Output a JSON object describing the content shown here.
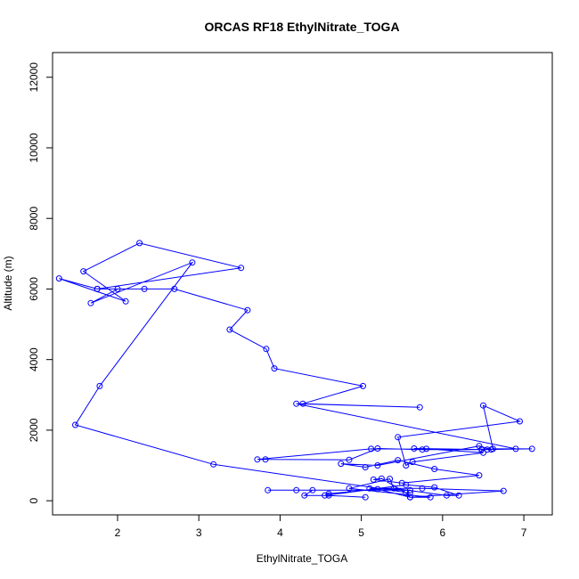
{
  "chart_data": {
    "type": "line",
    "title": "ORCAS RF18 EthylNitrate_TOGA",
    "xlabel": "EthylNitrate_TOGA",
    "ylabel": "Altitude (m)",
    "xlim": [
      1.2,
      7.35
    ],
    "ylim": [
      -400,
      12700
    ],
    "xticks": [
      2,
      3,
      4,
      5,
      6,
      7
    ],
    "yticks": [
      0,
      2000,
      4000,
      6000,
      8000,
      10000,
      12000
    ],
    "grid": false,
    "line_color": "#0000ff",
    "marker": "open-circle",
    "series": [
      {
        "x": [
          5.05,
          4.6,
          4.3,
          4.4,
          3.85,
          4.2,
          5.6,
          5.1,
          5.75,
          6.75,
          5.6,
          5.2,
          4.6,
          4.55,
          5.55,
          5.9,
          6.2,
          6.05,
          5.4,
          5.35,
          4.85,
          5.85,
          5.6,
          5.55,
          5.25,
          5.15,
          5.5,
          6.45,
          5.9,
          5.45,
          5.05,
          4.75,
          5.2,
          6.45,
          6.6,
          5.75,
          5.2,
          4.85,
          3.82,
          3.72,
          5.12,
          6.55,
          5.65,
          5.8,
          6.5,
          5.63,
          5.55,
          5.45,
          6.95,
          6.5,
          6.62,
          7.1,
          6.48,
          6.48,
          6.9,
          4.2,
          5.72,
          4.28,
          5.02,
          3.93,
          3.83,
          3.38,
          3.6,
          2.7,
          1.75,
          1.28,
          2.1,
          1.58,
          2.27,
          3.52,
          1.75,
          2.33,
          2.0,
          1.67,
          2.92,
          1.78,
          1.48,
          3.18,
          5.6
        ],
        "y": [
          100,
          150,
          150,
          300,
          300,
          300,
          300,
          350,
          350,
          280,
          100,
          330,
          200,
          150,
          450,
          380,
          150,
          150,
          350,
          620,
          350,
          100,
          100,
          220,
          630,
          600,
          500,
          720,
          900,
          1150,
          950,
          1050,
          1000,
          1550,
          1450,
          1450,
          1480,
          1160,
          1170,
          1170,
          1470,
          1450,
          1480,
          1470,
          1360,
          1100,
          1000,
          1800,
          2250,
          2700,
          1470,
          1470,
          1450,
          1460,
          1470,
          2750,
          2650,
          2750,
          3250,
          3750,
          4300,
          4850,
          5400,
          6000,
          6000,
          6300,
          5650,
          6500,
          7300,
          6600,
          6000,
          6000,
          6000,
          5600,
          6750,
          3250,
          2150,
          1030,
          220
        ]
      }
    ]
  }
}
